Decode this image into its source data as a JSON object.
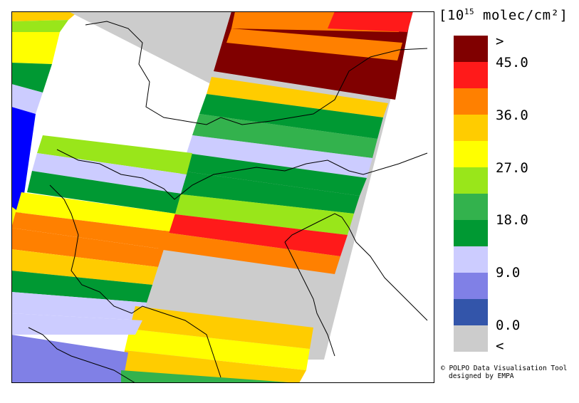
{
  "legend": {
    "title_prefix": "[10",
    "title_exponent": "15",
    "title_suffix": " molec/cm²]",
    "colors": [
      "#800000",
      "#ff1a1a",
      "#ff8000",
      "#ffcc00",
      "#ffff00",
      "#99e61a",
      "#33b24d",
      "#009933",
      "#ccccff",
      "#8080e6",
      "#3355aa",
      "#cccccc"
    ],
    "labels": [
      ">",
      "45.0",
      "36.0",
      "27.0",
      "18.0",
      "9.0",
      "0.0",
      "<"
    ]
  },
  "credits": {
    "line1": "© POLPO Data Visualisation Tool",
    "line2": "designed by EMPA"
  },
  "map": {
    "satellite_swaths": [
      "#800000",
      "#ff8000",
      "#cccccc",
      "#ffcc00",
      "#009933",
      "#ffcc00",
      "#33b24d",
      "#ccccff",
      "#009933",
      "#99e61a",
      "#ff1a1a",
      "#ffff00",
      "#cccccc",
      "#cccccc",
      "#ffcc00",
      "#ffff00",
      "#ffcc00",
      "#99e61a",
      "#ffff00",
      "#99e61a",
      "#cccccc",
      "#009933",
      "#ccccff",
      "#0000ff"
    ]
  }
}
